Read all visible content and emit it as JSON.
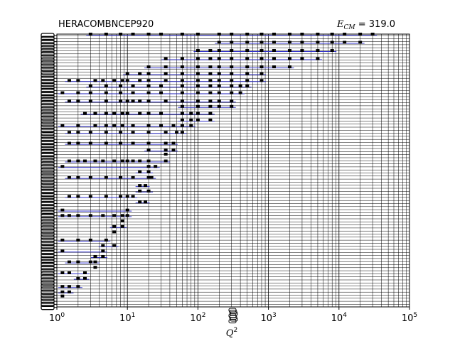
{
  "chart_data": {
    "type": "scatter",
    "title_left": "HERACOMBNCEP920",
    "title_right_symbol": "E",
    "title_right_subscript": "CM",
    "title_right_value": " = 319.0",
    "xlabel": "Q",
    "xlabel_sup": "2",
    "x_scale": "log",
    "xlim": [
      1,
      100000
    ],
    "x_tick_exponents": [
      0,
      1,
      2,
      3,
      4,
      5
    ],
    "x_tick_base": "10",
    "grid": true,
    "series_color": "#3333cc",
    "marker_color": "#000000",
    "series": [
      {
        "values": [
          [
            3,
            1.0
          ],
          [
            5,
            1.0
          ],
          [
            8,
            1.0
          ],
          [
            12,
            1.0
          ],
          [
            20,
            1.0
          ],
          [
            30,
            1.0
          ],
          [
            60,
            1.0
          ],
          [
            100,
            1.0
          ],
          [
            200,
            1.0
          ],
          [
            300,
            1.0
          ],
          [
            500,
            1.0
          ],
          [
            800,
            1.0
          ],
          [
            1200,
            1.0
          ],
          [
            2000,
            1.0
          ],
          [
            3000,
            1.0
          ],
          [
            5000,
            1.0
          ],
          [
            8000,
            1.0
          ],
          [
            12000,
            1.0
          ],
          [
            20000,
            1.0
          ],
          [
            30000,
            1.0
          ]
        ]
      },
      {
        "values": [
          [
            200,
            0.97
          ],
          [
            300,
            0.97
          ],
          [
            500,
            0.97
          ],
          [
            800,
            0.97
          ],
          [
            1200,
            0.97
          ],
          [
            2000,
            0.97
          ],
          [
            3000,
            0.97
          ],
          [
            5000,
            0.97
          ],
          [
            8000,
            0.97
          ],
          [
            12000,
            0.97
          ],
          [
            20000,
            0.97
          ]
        ]
      },
      {
        "values": [
          [
            100,
            0.94
          ],
          [
            150,
            0.94
          ],
          [
            200,
            0.94
          ],
          [
            300,
            0.94
          ],
          [
            500,
            0.94
          ],
          [
            800,
            0.94
          ],
          [
            1200,
            0.94
          ],
          [
            2000,
            0.94
          ],
          [
            3000,
            0.94
          ],
          [
            5000,
            0.94
          ],
          [
            8000,
            0.94
          ]
        ]
      },
      {
        "values": [
          [
            35,
            0.91
          ],
          [
            60,
            0.91
          ],
          [
            100,
            0.91
          ],
          [
            150,
            0.91
          ],
          [
            200,
            0.91
          ],
          [
            300,
            0.91
          ],
          [
            500,
            0.91
          ],
          [
            800,
            0.91
          ],
          [
            1200,
            0.91
          ],
          [
            2000,
            0.91
          ],
          [
            3000,
            0.91
          ],
          [
            5000,
            0.91
          ]
        ]
      },
      {
        "values": [
          [
            20,
            0.88
          ],
          [
            35,
            0.88
          ],
          [
            60,
            0.88
          ],
          [
            100,
            0.88
          ],
          [
            150,
            0.88
          ],
          [
            200,
            0.88
          ],
          [
            300,
            0.88
          ],
          [
            500,
            0.88
          ],
          [
            800,
            0.88
          ],
          [
            1200,
            0.88
          ],
          [
            2000,
            0.88
          ]
        ]
      },
      {
        "values": [
          [
            10,
            0.855
          ],
          [
            15,
            0.855
          ],
          [
            20,
            0.855
          ],
          [
            35,
            0.855
          ],
          [
            60,
            0.855
          ],
          [
            100,
            0.855
          ],
          [
            150,
            0.855
          ],
          [
            200,
            0.855
          ],
          [
            300,
            0.855
          ],
          [
            500,
            0.855
          ],
          [
            800,
            0.855
          ]
        ]
      },
      {
        "values": [
          [
            1.5,
            0.83
          ],
          [
            2,
            0.83
          ],
          [
            3.5,
            0.83
          ],
          [
            4.5,
            0.83
          ],
          [
            6.5,
            0.83
          ],
          [
            8.5,
            0.83
          ],
          [
            10,
            0.83
          ],
          [
            15,
            0.83
          ],
          [
            20,
            0.83
          ],
          [
            35,
            0.83
          ],
          [
            60,
            0.83
          ],
          [
            100,
            0.83
          ],
          [
            150,
            0.83
          ],
          [
            200,
            0.83
          ],
          [
            300,
            0.83
          ],
          [
            500,
            0.83
          ],
          [
            800,
            0.83
          ]
        ]
      },
      {
        "values": [
          [
            3,
            0.81
          ],
          [
            5,
            0.81
          ],
          [
            8,
            0.81
          ],
          [
            12,
            0.81
          ],
          [
            20,
            0.81
          ],
          [
            30,
            0.81
          ],
          [
            60,
            0.81
          ],
          [
            100,
            0.81
          ],
          [
            150,
            0.81
          ],
          [
            200,
            0.81
          ],
          [
            300,
            0.81
          ],
          [
            400,
            0.81
          ],
          [
            500,
            0.81
          ]
        ]
      },
      {
        "values": [
          [
            1.2,
            0.785
          ],
          [
            2,
            0.785
          ],
          [
            3,
            0.785
          ],
          [
            5,
            0.785
          ],
          [
            8,
            0.785
          ],
          [
            12,
            0.785
          ],
          [
            20,
            0.785
          ],
          [
            30,
            0.785
          ],
          [
            60,
            0.785
          ],
          [
            100,
            0.785
          ],
          [
            150,
            0.785
          ],
          [
            200,
            0.785
          ],
          [
            300,
            0.785
          ],
          [
            400,
            0.785
          ]
        ]
      },
      {
        "values": [
          [
            1.5,
            0.755
          ],
          [
            2,
            0.755
          ],
          [
            3,
            0.755
          ],
          [
            5,
            0.755
          ],
          [
            8,
            0.755
          ],
          [
            10,
            0.755
          ],
          [
            12,
            0.755
          ],
          [
            15,
            0.755
          ],
          [
            20,
            0.755
          ],
          [
            35,
            0.755
          ],
          [
            60,
            0.755
          ],
          [
            100,
            0.755
          ],
          [
            150,
            0.755
          ],
          [
            200,
            0.755
          ],
          [
            300,
            0.755
          ]
        ]
      },
      {
        "values": [
          [
            60,
            0.735
          ],
          [
            100,
            0.735
          ],
          [
            150,
            0.735
          ],
          [
            200,
            0.735
          ],
          [
            300,
            0.735
          ]
        ]
      },
      {
        "values": [
          [
            2.5,
            0.71
          ],
          [
            3.5,
            0.71
          ],
          [
            5,
            0.71
          ],
          [
            6.5,
            0.71
          ],
          [
            8.5,
            0.71
          ],
          [
            10,
            0.71
          ],
          [
            15,
            0.71
          ],
          [
            20,
            0.71
          ],
          [
            30,
            0.71
          ],
          [
            60,
            0.71
          ],
          [
            80,
            0.71
          ],
          [
            100,
            0.71
          ],
          [
            150,
            0.71
          ]
        ]
      },
      {
        "values": [
          [
            60,
            0.685
          ],
          [
            80,
            0.685
          ],
          [
            100,
            0.685
          ],
          [
            150,
            0.685
          ]
        ]
      },
      {
        "values": [
          [
            1.2,
            0.665
          ],
          [
            2,
            0.665
          ],
          [
            3.5,
            0.665
          ],
          [
            5,
            0.665
          ],
          [
            6.5,
            0.665
          ],
          [
            8.5,
            0.665
          ],
          [
            12,
            0.665
          ],
          [
            20,
            0.665
          ],
          [
            30,
            0.665
          ],
          [
            45,
            0.665
          ],
          [
            60,
            0.665
          ],
          [
            80,
            0.665
          ]
        ]
      },
      {
        "values": [
          [
            1.5,
            0.64
          ],
          [
            2,
            0.64
          ],
          [
            3,
            0.64
          ],
          [
            5,
            0.64
          ],
          [
            8,
            0.64
          ],
          [
            12,
            0.64
          ],
          [
            20,
            0.64
          ],
          [
            35,
            0.64
          ],
          [
            50,
            0.64
          ],
          [
            60,
            0.64
          ]
        ]
      },
      {
        "values": [
          [
            1.5,
            0.6
          ],
          [
            2,
            0.6
          ],
          [
            3,
            0.6
          ],
          [
            5,
            0.6
          ],
          [
            8,
            0.6
          ],
          [
            12,
            0.6
          ],
          [
            20,
            0.6
          ],
          [
            35,
            0.6
          ],
          [
            45,
            0.6
          ]
        ]
      },
      {
        "values": [
          [
            20,
            0.575
          ],
          [
            35,
            0.575
          ],
          [
            45,
            0.575
          ]
        ]
      },
      {
        "values": [
          [
            35,
            0.56
          ]
        ]
      },
      {
        "values": [
          [
            1.5,
            0.535
          ],
          [
            2,
            0.535
          ],
          [
            2.5,
            0.535
          ],
          [
            3.5,
            0.535
          ],
          [
            4.5,
            0.535
          ],
          [
            6.5,
            0.535
          ],
          [
            8.5,
            0.535
          ],
          [
            10,
            0.535
          ],
          [
            12,
            0.535
          ],
          [
            15,
            0.535
          ],
          [
            20,
            0.535
          ],
          [
            35,
            0.535
          ]
        ]
      },
      {
        "values": [
          [
            1.2,
            0.515
          ],
          [
            20,
            0.515
          ],
          [
            25,
            0.515
          ]
        ]
      },
      {
        "values": [
          [
            15,
            0.495
          ],
          [
            20,
            0.495
          ]
        ]
      },
      {
        "values": [
          [
            1.5,
            0.475
          ],
          [
            2,
            0.475
          ],
          [
            3,
            0.475
          ],
          [
            5,
            0.475
          ],
          [
            8,
            0.475
          ],
          [
            12,
            0.475
          ],
          [
            20,
            0.475
          ],
          [
            22,
            0.475
          ]
        ]
      },
      {
        "values": [
          [
            15,
            0.445
          ],
          [
            18,
            0.445
          ]
        ]
      },
      {
        "values": [
          [
            15,
            0.425
          ],
          [
            20,
            0.425
          ]
        ]
      },
      {
        "values": [
          [
            1.5,
            0.405
          ],
          [
            2,
            0.405
          ],
          [
            3,
            0.405
          ],
          [
            5,
            0.405
          ],
          [
            8,
            0.405
          ],
          [
            10,
            0.405
          ],
          [
            12,
            0.405
          ]
        ]
      },
      {
        "values": [
          [
            15,
            0.385
          ],
          [
            18,
            0.385
          ]
        ]
      },
      {
        "values": [
          [
            1.2,
            0.355
          ],
          [
            10,
            0.355
          ]
        ]
      },
      {
        "values": [
          [
            1.2,
            0.335
          ],
          [
            1.5,
            0.335
          ],
          [
            2,
            0.335
          ],
          [
            3,
            0.335
          ],
          [
            4.5,
            0.335
          ],
          [
            6.5,
            0.335
          ],
          [
            8.5,
            0.335
          ],
          [
            10,
            0.335
          ]
        ]
      },
      {
        "values": [
          [
            8.5,
            0.315
          ]
        ]
      },
      {
        "values": [
          [
            6.5,
            0.295
          ],
          [
            8.5,
            0.295
          ]
        ]
      },
      {
        "values": [
          [
            6.5,
            0.275
          ]
        ]
      },
      {
        "values": [
          [
            1.2,
            0.245
          ],
          [
            2,
            0.245
          ],
          [
            3,
            0.245
          ],
          [
            5,
            0.245
          ]
        ]
      },
      {
        "values": [
          [
            4.5,
            0.225
          ],
          [
            6.5,
            0.225
          ]
        ]
      },
      {
        "values": [
          [
            1.2,
            0.205
          ],
          [
            4.5,
            0.205
          ]
        ]
      },
      {
        "values": [
          [
            3.5,
            0.185
          ],
          [
            4.5,
            0.185
          ]
        ]
      },
      {
        "values": [
          [
            1.5,
            0.165
          ],
          [
            2,
            0.165
          ],
          [
            3,
            0.165
          ],
          [
            3.5,
            0.165
          ]
        ]
      },
      {
        "values": [
          [
            3.5,
            0.145
          ]
        ]
      },
      {
        "values": [
          [
            1.2,
            0.125
          ],
          [
            1.5,
            0.125
          ],
          [
            2.5,
            0.125
          ]
        ]
      },
      {
        "values": [
          [
            2,
            0.105
          ],
          [
            2.5,
            0.105
          ]
        ]
      },
      {
        "values": [
          [
            1.2,
            0.075
          ],
          [
            1.5,
            0.075
          ],
          [
            2,
            0.075
          ]
        ]
      },
      {
        "values": [
          [
            1.2,
            0.055
          ],
          [
            1.5,
            0.055
          ]
        ]
      },
      {
        "values": [
          [
            1.2,
            0.04
          ]
        ]
      }
    ]
  }
}
